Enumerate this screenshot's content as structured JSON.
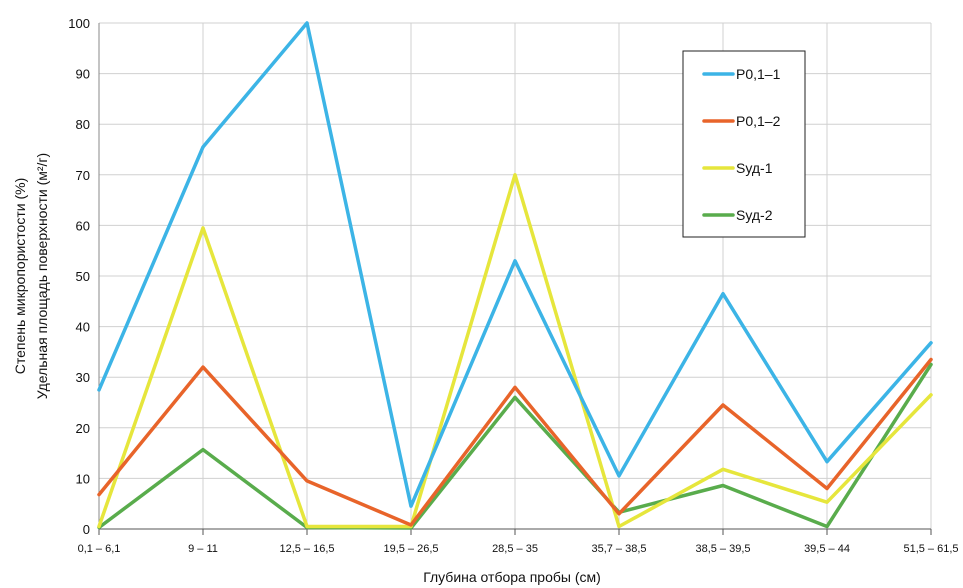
{
  "chart_data": {
    "type": "line",
    "xlabel": "Глубина отбора пробы (см)",
    "ylabel_lines": [
      "Степень микропористости (%)",
      "Удельная площадь поверхности (м²/г)"
    ],
    "ylim": [
      0,
      100
    ],
    "yticks": [
      "0",
      "10",
      "20",
      "30",
      "40",
      "50",
      "60",
      "70",
      "80",
      "90",
      "100"
    ],
    "categories": [
      "0,1 – 6,1",
      "9 – 11",
      "12,5 – 16,5",
      "19,5 – 26,5",
      "28,5 – 35",
      "35,7 – 38,5",
      "38,5 – 39,5",
      "39,5 – 44",
      "51,5 – 61,5"
    ],
    "grid": true,
    "legend_position": "top-right",
    "series": [
      {
        "name": "P0,1–1",
        "color": "#3cb4e6",
        "values": [
          27.5,
          75.5,
          100,
          4.5,
          53,
          10.5,
          46.5,
          13.3,
          36.8
        ]
      },
      {
        "name": "P0,1–2",
        "color": "#e8642a",
        "values": [
          6.8,
          32,
          9.5,
          0.8,
          28,
          3,
          24.5,
          8,
          33.5
        ]
      },
      {
        "name": "Sуд-1",
        "color": "#e6e63c",
        "values": [
          0.5,
          59.5,
          0.5,
          0.5,
          70,
          0.5,
          11.8,
          5.3,
          26.5
        ]
      },
      {
        "name": "Sуд-2",
        "color": "#59ac4c",
        "values": [
          0.3,
          15.7,
          0.3,
          0.2,
          26,
          3.3,
          8.6,
          0.5,
          32.5
        ]
      }
    ]
  }
}
